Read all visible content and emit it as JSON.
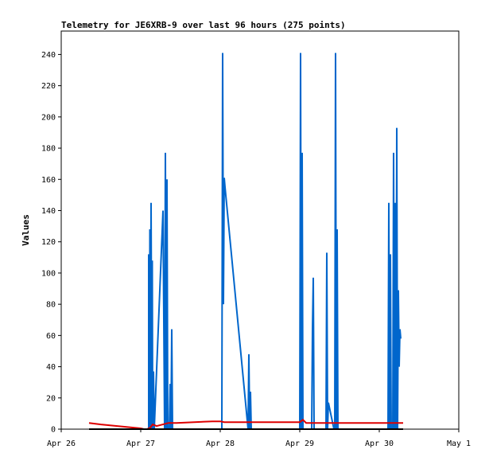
{
  "chart_data": {
    "type": "line",
    "title": "Telemetry for JE6XRB-9 over last 96 hours (275 points)",
    "ylabel": "Values",
    "xlabel": "",
    "ylim": [
      0,
      255
    ],
    "xlim": [
      "Apr 26",
      "May 1"
    ],
    "x_ticks": [
      "Apr 26",
      "Apr 27",
      "Apr 28",
      "Apr 29",
      "Apr 30",
      "May 1"
    ],
    "y_ticks": [
      0,
      20,
      40,
      60,
      80,
      100,
      120,
      140,
      160,
      180,
      200,
      220,
      240
    ],
    "grid": false,
    "legend": "none",
    "series": [
      {
        "color": "#0066cc",
        "points": [
          [
            1.05,
            0
          ],
          [
            1.1,
            0
          ],
          [
            1.1,
            112
          ],
          [
            1.11,
            0
          ],
          [
            1.115,
            128
          ],
          [
            1.12,
            0
          ],
          [
            1.13,
            145
          ],
          [
            1.14,
            0
          ],
          [
            1.145,
            108
          ],
          [
            1.15,
            0
          ],
          [
            1.16,
            37
          ],
          [
            1.17,
            0
          ],
          [
            1.28,
            140
          ],
          [
            1.3,
            0
          ],
          [
            1.31,
            177
          ],
          [
            1.32,
            0
          ],
          [
            1.33,
            160
          ],
          [
            1.34,
            0
          ],
          [
            1.36,
            0
          ],
          [
            1.37,
            29
          ],
          [
            1.38,
            0
          ],
          [
            1.39,
            64
          ],
          [
            1.4,
            0
          ],
          [
            1.41,
            0
          ],
          [
            2.02,
            0
          ],
          [
            2.03,
            241
          ],
          [
            2.04,
            80
          ],
          [
            2.05,
            161
          ],
          [
            2.06,
            155
          ],
          [
            2.35,
            0
          ],
          [
            2.36,
            48
          ],
          [
            2.37,
            0
          ],
          [
            2.38,
            24
          ],
          [
            2.39,
            0
          ],
          [
            3.0,
            0
          ],
          [
            3.01,
            241
          ],
          [
            3.02,
            0
          ],
          [
            3.03,
            177
          ],
          [
            3.04,
            0
          ],
          [
            3.15,
            0
          ],
          [
            3.16,
            64
          ],
          [
            3.17,
            97
          ],
          [
            3.18,
            0
          ],
          [
            3.33,
            0
          ],
          [
            3.34,
            113
          ],
          [
            3.35,
            0
          ],
          [
            3.36,
            17
          ],
          [
            3.43,
            0
          ],
          [
            3.44,
            0
          ],
          [
            3.45,
            241
          ],
          [
            3.46,
            0
          ],
          [
            3.47,
            128
          ],
          [
            3.48,
            0
          ],
          [
            4.11,
            0
          ],
          [
            4.12,
            145
          ],
          [
            4.13,
            0
          ],
          [
            4.14,
            112
          ],
          [
            4.15,
            0
          ],
          [
            4.17,
            0
          ],
          [
            4.18,
            177
          ],
          [
            4.19,
            0
          ],
          [
            4.2,
            145
          ],
          [
            4.21,
            0
          ],
          [
            4.22,
            193
          ],
          [
            4.23,
            0
          ],
          [
            4.24,
            89
          ],
          [
            4.25,
            40
          ],
          [
            4.26,
            64
          ],
          [
            4.27,
            58
          ]
        ]
      },
      {
        "color": "#dd0000",
        "points": [
          [
            0.35,
            4
          ],
          [
            0.5,
            3
          ],
          [
            1.0,
            0.5
          ],
          [
            1.04,
            0
          ],
          [
            1.08,
            0
          ],
          [
            1.12,
            1
          ],
          [
            1.15,
            3
          ],
          [
            1.2,
            2
          ],
          [
            1.35,
            4
          ],
          [
            1.45,
            4
          ],
          [
            1.9,
            5
          ],
          [
            2.0,
            5
          ],
          [
            2.05,
            4.5
          ],
          [
            2.5,
            4.5
          ],
          [
            3.0,
            4.5
          ],
          [
            3.04,
            6
          ],
          [
            3.08,
            4
          ],
          [
            4.0,
            4
          ],
          [
            4.3,
            4
          ]
        ]
      },
      {
        "color": "#000000",
        "points": [
          [
            0.35,
            0
          ],
          [
            4.3,
            0
          ]
        ]
      }
    ]
  }
}
